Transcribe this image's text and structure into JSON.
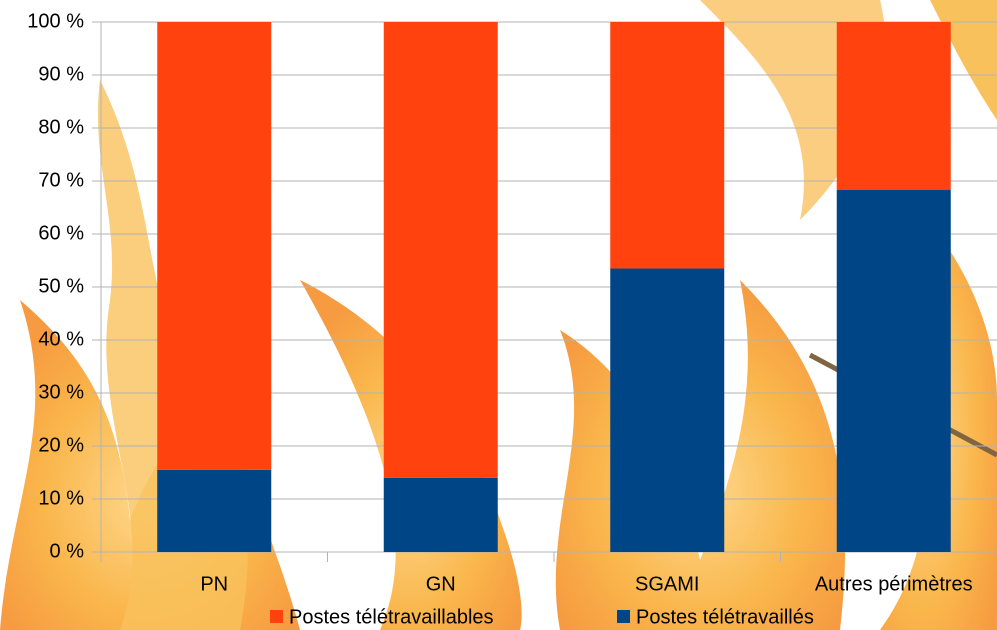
{
  "chart_data": {
    "type": "stacked-bar",
    "categories": [
      "PN",
      "GN",
      "SGAMI",
      "Autres périmètres"
    ],
    "series": [
      {
        "name": "Postes télétravaillés",
        "color": "#004586",
        "values": [
          15.5,
          14,
          53.5,
          68.3
        ]
      },
      {
        "name": "Postes télétravaillables",
        "color": "#ff420e",
        "values": [
          84.5,
          86,
          46.5,
          31.7
        ]
      }
    ],
    "ylim": [
      0,
      100
    ],
    "yticks": [
      {
        "value": 0,
        "label": "0 %"
      },
      {
        "value": 10,
        "label": "10 %"
      },
      {
        "value": 20,
        "label": "20 %"
      },
      {
        "value": 30,
        "label": "30 %"
      },
      {
        "value": 40,
        "label": "40 %"
      },
      {
        "value": 50,
        "label": "50 %"
      },
      {
        "value": 60,
        "label": "60 %"
      },
      {
        "value": 70,
        "label": "70 %"
      },
      {
        "value": 80,
        "label": "80 %"
      },
      {
        "value": 90,
        "label": "90 %"
      },
      {
        "value": 100,
        "label": "100 %"
      }
    ],
    "grid": true
  }
}
